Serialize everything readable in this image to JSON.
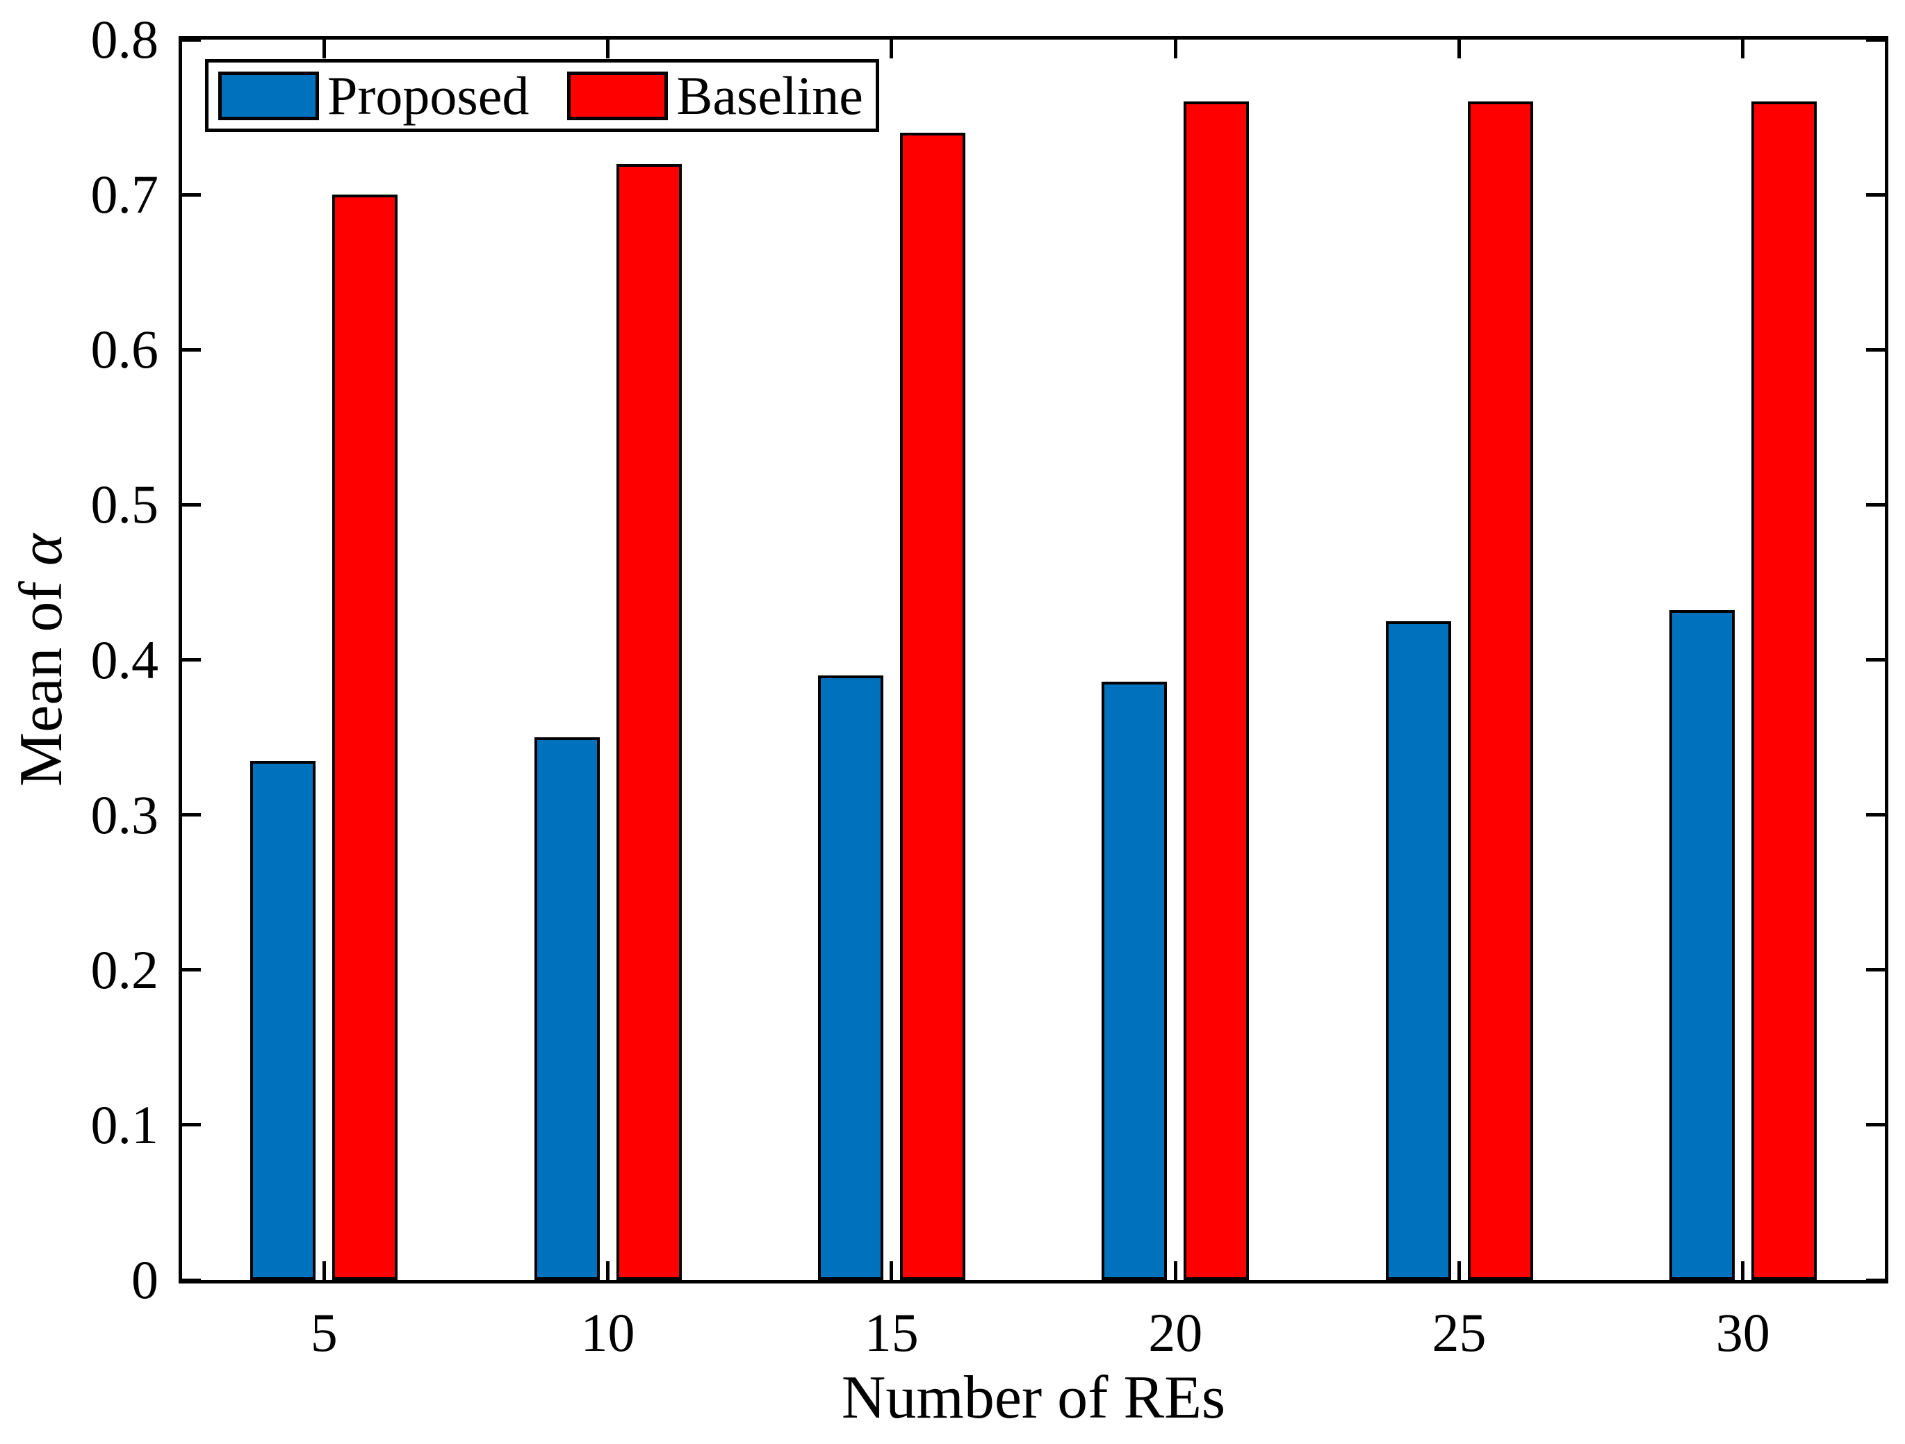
{
  "figure": {
    "background": "#FFFFFF",
    "axis_color": "#000000",
    "bar_edge_color": "#000000"
  },
  "chart_data": {
    "type": "bar",
    "title": "",
    "xlabel": "Number of REs",
    "ylabel": "Mean of α",
    "ylabel_prefix": "Mean of ",
    "ylabel_symbol": "α",
    "categories": [
      "5",
      "10",
      "15",
      "20",
      "25",
      "30"
    ],
    "series": [
      {
        "name": "Proposed",
        "color": "#0072BD",
        "values": [
          0.335,
          0.35,
          0.39,
          0.386,
          0.425,
          0.432
        ]
      },
      {
        "name": "Baseline",
        "color": "#FF0000",
        "values": [
          0.7,
          0.72,
          0.74,
          0.76,
          0.76,
          0.76
        ]
      }
    ],
    "ylim": [
      0,
      0.8
    ],
    "ytick_labels": [
      "0",
      "0.1",
      "0.2",
      "0.3",
      "0.4",
      "0.5",
      "0.6",
      "0.7",
      "0.8"
    ],
    "legend_position": "top-left",
    "grid": false
  }
}
